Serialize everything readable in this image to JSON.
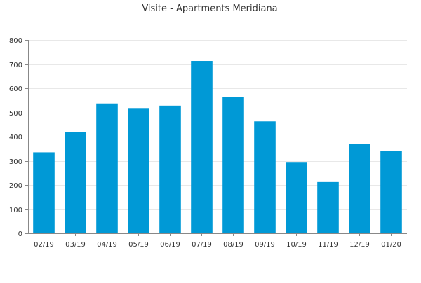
{
  "chart_data": {
    "type": "bar",
    "title": "Visite - Apartments Meridiana",
    "xlabel": "",
    "ylabel": "",
    "categories": [
      "02/19",
      "03/19",
      "04/19",
      "05/19",
      "06/19",
      "07/19",
      "08/19",
      "09/19",
      "10/19",
      "11/19",
      "12/19",
      "01/20"
    ],
    "values": [
      335,
      420,
      537,
      518,
      528,
      713,
      565,
      463,
      295,
      212,
      371,
      340
    ],
    "ylim": [
      0,
      800
    ],
    "yticks": [
      0,
      100,
      200,
      300,
      400,
      500,
      600,
      700,
      800
    ],
    "grid": true,
    "legend": "none",
    "colors": {
      "bar": "#0099d6",
      "grid": "#e8e8e8",
      "axis": "#888888",
      "text": "#333333"
    }
  }
}
